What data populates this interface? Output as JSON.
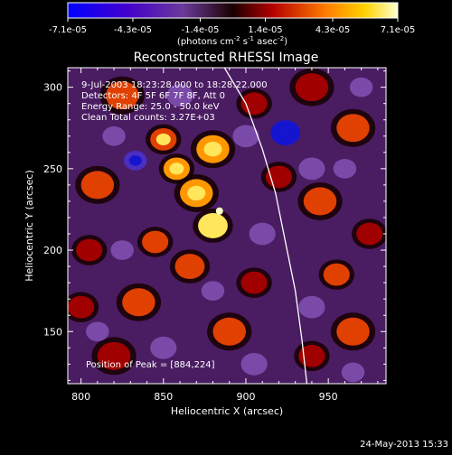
{
  "chart_data": {
    "type": "heatmap",
    "title": "Reconstructed RHESSI Image",
    "xlabel": "Heliocentric X (arcsec)",
    "ylabel": "Heliocentric Y (arcsec)",
    "xlim": [
      792,
      985
    ],
    "ylim": [
      118,
      312
    ],
    "x_ticks": [
      800,
      850,
      900,
      950
    ],
    "y_ticks": [
      150,
      200,
      250,
      300
    ],
    "colorbar": {
      "range": [
        -7.1e-05,
        7.1e-05
      ],
      "tick_labels": [
        "-7.1e-05",
        "-4.3e-05",
        "-1.4e-05",
        "1.4e-05",
        "4.3e-05",
        "7.1e-05"
      ],
      "tick_values": [
        -7.1e-05,
        -4.3e-05,
        -1.4e-05,
        1.4e-05,
        4.3e-05,
        7.1e-05
      ],
      "units": "(photons cm-2 s-1 asec-2)",
      "units_parts": [
        "(photons cm",
        "-2",
        " s",
        "-1",
        " asec",
        "-2",
        ")"
      ]
    },
    "annotations": [
      "9-Jul-2003 18:23:28.000 to 18:28:22.000",
      "Detectors: 4F 5F 6F 7F 8F, Att 0",
      "Energy Range: 25.0 - 50.0 keV",
      "Clean    Total counts: 3.27E+03"
    ],
    "peak_label": "Position of Peak = [884,224]",
    "peak": [
      884,
      224
    ],
    "limb_curve": [
      [
        887,
        312
      ],
      [
        900,
        290
      ],
      [
        910,
        262
      ],
      [
        918,
        235
      ],
      [
        924,
        205
      ],
      [
        930,
        175
      ],
      [
        934,
        145
      ],
      [
        937,
        118
      ]
    ],
    "blobs": [
      {
        "x": 880,
        "y": 215,
        "v": 0.95,
        "s": 9
      },
      {
        "x": 870,
        "y": 235,
        "v": 0.7,
        "s": 10
      },
      {
        "x": 858,
        "y": 250,
        "v": 0.6,
        "s": 8
      },
      {
        "x": 850,
        "y": 268,
        "v": 0.55,
        "s": 8
      },
      {
        "x": 880,
        "y": 262,
        "v": 0.65,
        "s": 10
      },
      {
        "x": 866,
        "y": 190,
        "v": 0.45,
        "s": 9
      },
      {
        "x": 845,
        "y": 205,
        "v": 0.4,
        "s": 8
      },
      {
        "x": 810,
        "y": 240,
        "v": 0.5,
        "s": 10
      },
      {
        "x": 805,
        "y": 200,
        "v": 0.35,
        "s": 8
      },
      {
        "x": 835,
        "y": 168,
        "v": 0.45,
        "s": 10
      },
      {
        "x": 820,
        "y": 135,
        "v": 0.3,
        "s": 10
      },
      {
        "x": 890,
        "y": 150,
        "v": 0.5,
        "s": 10
      },
      {
        "x": 905,
        "y": 180,
        "v": 0.35,
        "s": 8
      },
      {
        "x": 945,
        "y": 230,
        "v": 0.45,
        "s": 10
      },
      {
        "x": 955,
        "y": 185,
        "v": 0.4,
        "s": 8
      },
      {
        "x": 965,
        "y": 150,
        "v": 0.45,
        "s": 10
      },
      {
        "x": 940,
        "y": 135,
        "v": 0.35,
        "s": 8
      },
      {
        "x": 965,
        "y": 275,
        "v": 0.4,
        "s": 10
      },
      {
        "x": 940,
        "y": 300,
        "v": 0.35,
        "s": 10
      },
      {
        "x": 825,
        "y": 295,
        "v": 0.45,
        "s": 10
      },
      {
        "x": 905,
        "y": 290,
        "v": 0.3,
        "s": 8
      },
      {
        "x": 920,
        "y": 245,
        "v": 0.3,
        "s": 8
      },
      {
        "x": 800,
        "y": 165,
        "v": 0.3,
        "s": 8
      },
      {
        "x": 975,
        "y": 210,
        "v": 0.3,
        "s": 8
      },
      {
        "x": 924,
        "y": 272,
        "v": -0.9,
        "s": 9
      },
      {
        "x": 833,
        "y": 255,
        "v": -0.6,
        "s": 7
      },
      {
        "x": 820,
        "y": 270,
        "v": -0.4,
        "s": 7
      },
      {
        "x": 940,
        "y": 250,
        "v": -0.45,
        "s": 8
      },
      {
        "x": 960,
        "y": 250,
        "v": -0.35,
        "s": 7
      },
      {
        "x": 900,
        "y": 270,
        "v": -0.35,
        "s": 8
      },
      {
        "x": 850,
        "y": 140,
        "v": -0.4,
        "s": 8
      },
      {
        "x": 905,
        "y": 130,
        "v": -0.45,
        "s": 8
      },
      {
        "x": 910,
        "y": 210,
        "v": -0.35,
        "s": 8
      },
      {
        "x": 940,
        "y": 165,
        "v": -0.35,
        "s": 8
      },
      {
        "x": 860,
        "y": 295,
        "v": -0.3,
        "s": 8
      },
      {
        "x": 810,
        "y": 150,
        "v": -0.35,
        "s": 7
      },
      {
        "x": 970,
        "y": 300,
        "v": -0.4,
        "s": 7
      },
      {
        "x": 880,
        "y": 175,
        "v": -0.3,
        "s": 7
      },
      {
        "x": 825,
        "y": 200,
        "v": -0.3,
        "s": 7
      },
      {
        "x": 965,
        "y": 125,
        "v": -0.3,
        "s": 7
      }
    ]
  },
  "footer": {
    "date": "24-May-2013 15:33"
  }
}
